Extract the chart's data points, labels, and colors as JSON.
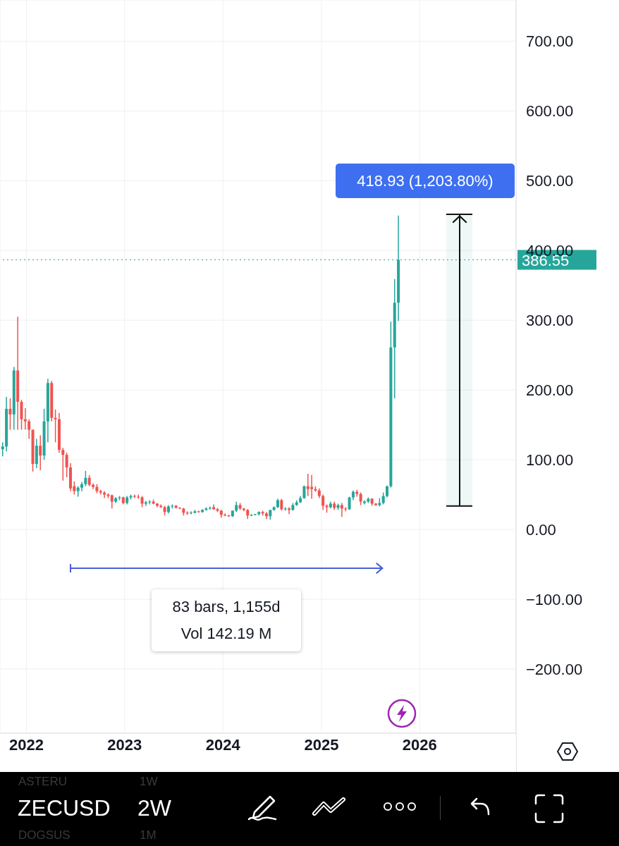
{
  "chart_data": {
    "type": "candlestick",
    "x": [
      "2021-10-04",
      "2021-10-18",
      "2021-11-01",
      "2021-11-15",
      "2021-11-29",
      "2021-12-13",
      "2021-12-27",
      "2022-01-10",
      "2022-01-24",
      "2022-02-07",
      "2022-02-21",
      "2022-03-07",
      "2022-03-21",
      "2022-04-04",
      "2022-04-18",
      "2022-05-02",
      "2022-05-16",
      "2022-05-30",
      "2022-06-13",
      "2022-06-27",
      "2022-07-11",
      "2022-07-25",
      "2022-08-08",
      "2022-08-22",
      "2022-09-05",
      "2022-09-19",
      "2022-10-03",
      "2022-10-17",
      "2022-10-31",
      "2022-11-14",
      "2022-11-28",
      "2022-12-12",
      "2022-12-26",
      "2023-01-09",
      "2023-01-23",
      "2023-02-06",
      "2023-02-20",
      "2023-03-06",
      "2023-03-20",
      "2023-04-03",
      "2023-04-17",
      "2023-05-01",
      "2023-05-15",
      "2023-05-29",
      "2023-06-12",
      "2023-06-26",
      "2023-07-10",
      "2023-07-24",
      "2023-08-07",
      "2023-08-21",
      "2023-09-04",
      "2023-09-18",
      "2023-10-02",
      "2023-10-16",
      "2023-10-30",
      "2023-11-13",
      "2023-11-27",
      "2023-12-11",
      "2023-12-25",
      "2024-01-08",
      "2024-01-22",
      "2024-02-05",
      "2024-02-19",
      "2024-03-04",
      "2024-03-18",
      "2024-04-01",
      "2024-04-15",
      "2024-04-29",
      "2024-05-13",
      "2024-05-27",
      "2024-06-10",
      "2024-06-24",
      "2024-07-08",
      "2024-07-22",
      "2024-08-05",
      "2024-08-19",
      "2024-09-02",
      "2024-09-16",
      "2024-09-30",
      "2024-10-14",
      "2024-10-28",
      "2024-11-11",
      "2024-11-25",
      "2024-12-09",
      "2024-12-23",
      "2025-01-06",
      "2025-01-20",
      "2025-02-03",
      "2025-02-17",
      "2025-03-03",
      "2025-03-17",
      "2025-03-31",
      "2025-04-14",
      "2025-04-28",
      "2025-05-12",
      "2025-05-26",
      "2025-06-09",
      "2025-06-23",
      "2025-07-07",
      "2025-07-21",
      "2025-08-04",
      "2025-08-18",
      "2025-09-01",
      "2025-09-15",
      "2025-09-29",
      "2025-10-13"
    ],
    "ohlc": [
      [
        115,
        125,
        105,
        119
      ],
      [
        119,
        190,
        112,
        173
      ],
      [
        173,
        188,
        143,
        165
      ],
      [
        165,
        233,
        143,
        228
      ],
      [
        228,
        305,
        143,
        183
      ],
      [
        183,
        186,
        143,
        158
      ],
      [
        158,
        174,
        143,
        155
      ],
      [
        155,
        158,
        130,
        143
      ],
      [
        143,
        143,
        83,
        94
      ],
      [
        94,
        130,
        88,
        120
      ],
      [
        120,
        135,
        85,
        106
      ],
      [
        106,
        173,
        100,
        155
      ],
      [
        155,
        216,
        125,
        210
      ],
      [
        210,
        213,
        155,
        160
      ],
      [
        160,
        172,
        125,
        158
      ],
      [
        158,
        167,
        110,
        114
      ],
      [
        114,
        117,
        70,
        107
      ],
      [
        107,
        110,
        75,
        89
      ],
      [
        89,
        95,
        55,
        59
      ],
      [
        62,
        69,
        50,
        55
      ],
      [
        55,
        62,
        47,
        60
      ],
      [
        60,
        68,
        55,
        65
      ],
      [
        65,
        84,
        62,
        74
      ],
      [
        74,
        78,
        62,
        64
      ],
      [
        64,
        66,
        58,
        61
      ],
      [
        61,
        65,
        52,
        55
      ],
      [
        55,
        57,
        50,
        53
      ],
      [
        53,
        55,
        45,
        50
      ],
      [
        50,
        52,
        45,
        48
      ],
      [
        49,
        50,
        30,
        40
      ],
      [
        40,
        46,
        38,
        45
      ],
      [
        45,
        48,
        42,
        46
      ],
      [
        46,
        47,
        36,
        38
      ],
      [
        38,
        48,
        36,
        46
      ],
      [
        46,
        50,
        43,
        48
      ],
      [
        48,
        50,
        45,
        47
      ],
      [
        47,
        50,
        44,
        46
      ],
      [
        46,
        48,
        32,
        37
      ],
      [
        37,
        41,
        34,
        39
      ],
      [
        39,
        42,
        36,
        40
      ],
      [
        40,
        43,
        36,
        37
      ],
      [
        37,
        38,
        32,
        34
      ],
      [
        34,
        36,
        31,
        32
      ],
      [
        32,
        34,
        20,
        25
      ],
      [
        25,
        35,
        23,
        33
      ],
      [
        33,
        36,
        30,
        34
      ],
      [
        34,
        35,
        30,
        31
      ],
      [
        31,
        32,
        29,
        30
      ],
      [
        30,
        31,
        20,
        24
      ],
      [
        24,
        26,
        21,
        23
      ],
      [
        23,
        26,
        22,
        24
      ],
      [
        24,
        28,
        23,
        26
      ],
      [
        26,
        27,
        24,
        25
      ],
      [
        25,
        29,
        24,
        28
      ],
      [
        28,
        32,
        27,
        30
      ],
      [
        30,
        33,
        28,
        31
      ],
      [
        32,
        36,
        28,
        29
      ],
      [
        29,
        31,
        25,
        27
      ],
      [
        27,
        28,
        17,
        21
      ],
      [
        21,
        23,
        19,
        20
      ],
      [
        20,
        21,
        18,
        19
      ],
      [
        19,
        27,
        18,
        27
      ],
      [
        27,
        40,
        25,
        35
      ],
      [
        35,
        38,
        28,
        30
      ],
      [
        30,
        31,
        26,
        28
      ],
      [
        28,
        29,
        15,
        20
      ],
      [
        20,
        22,
        19,
        21
      ],
      [
        21,
        22,
        20,
        22
      ],
      [
        22,
        26,
        20,
        25
      ],
      [
        25,
        27,
        20,
        23
      ],
      [
        23,
        25,
        15,
        19
      ],
      [
        19,
        28,
        14,
        28
      ],
      [
        28,
        33,
        27,
        32
      ],
      [
        32,
        44,
        31,
        42
      ],
      [
        42,
        44,
        27,
        29
      ],
      [
        29,
        32,
        27,
        30
      ],
      [
        30,
        32,
        22,
        28
      ],
      [
        28,
        38,
        27,
        35
      ],
      [
        35,
        42,
        34,
        39
      ],
      [
        39,
        48,
        38,
        45
      ],
      [
        45,
        63,
        44,
        62
      ],
      [
        62,
        80,
        48,
        58
      ],
      [
        61,
        78,
        44,
        58
      ],
      [
        58,
        62,
        54,
        56
      ],
      [
        56,
        59,
        45,
        48
      ],
      [
        48,
        50,
        28,
        34
      ],
      [
        34,
        36,
        24,
        32
      ],
      [
        32,
        40,
        30,
        37
      ],
      [
        37,
        40,
        28,
        31
      ],
      [
        31,
        37,
        28,
        35
      ],
      [
        35,
        38,
        18,
        30
      ],
      [
        30,
        32,
        26,
        29
      ],
      [
        29,
        47,
        28,
        46
      ],
      [
        46,
        56,
        42,
        54
      ],
      [
        54,
        57,
        47,
        51
      ],
      [
        51,
        53,
        35,
        40
      ],
      [
        38,
        42,
        36,
        40
      ],
      [
        40,
        46,
        38,
        44
      ],
      [
        44,
        45,
        34,
        37
      ],
      [
        37,
        38,
        34,
        35
      ],
      [
        35,
        45,
        33,
        38
      ],
      [
        38,
        53,
        36,
        48
      ],
      [
        48,
        63,
        46,
        62
      ],
      [
        62,
        298,
        60,
        261
      ],
      [
        261,
        359,
        188,
        325
      ],
      [
        325,
        450,
        299,
        386.55
      ]
    ],
    "colors": [
      "#26a69a",
      "#26a69a",
      "#ef5350",
      "#26a69a",
      "#ef5350",
      "#ef5350",
      "#ef5350",
      "#ef5350",
      "#ef5350",
      "#26a69a",
      "#ef5350",
      "#26a69a",
      "#26a69a",
      "#ef5350",
      "#ef5350",
      "#ef5350",
      "#ef5350",
      "#ef5350",
      "#ef5350",
      "#ef5350",
      "#26a69a",
      "#26a69a",
      "#26a69a",
      "#ef5350",
      "#ef5350",
      "#ef5350",
      "#ef5350",
      "#ef5350",
      "#ef5350",
      "#ef5350",
      "#26a69a",
      "#26a69a",
      "#ef5350",
      "#26a69a",
      "#26a69a",
      "#ef5350",
      "#ef5350",
      "#ef5350",
      "#26a69a",
      "#26a69a",
      "#ef5350",
      "#ef5350",
      "#ef5350",
      "#ef5350",
      "#26a69a",
      "#26a69a",
      "#ef5350",
      "#ef5350",
      "#ef5350",
      "#ef5350",
      "#26a69a",
      "#26a69a",
      "#ef5350",
      "#26a69a",
      "#26a69a",
      "#26a69a",
      "#ef5350",
      "#ef5350",
      "#ef5350",
      "#ef5350",
      "#ef5350",
      "#26a69a",
      "#26a69a",
      "#ef5350",
      "#ef5350",
      "#ef5350",
      "#26a69a",
      "#26a69a",
      "#26a69a",
      "#ef5350",
      "#ef5350",
      "#26a69a",
      "#26a69a",
      "#26a69a",
      "#ef5350",
      "#26a69a",
      "#ef5350",
      "#26a69a",
      "#26a69a",
      "#26a69a",
      "#26a69a",
      "#ef5350",
      "#ef5350",
      "#ef5350",
      "#ef5350",
      "#ef5350",
      "#ef5350",
      "#26a69a",
      "#ef5350",
      "#26a69a",
      "#ef5350",
      "#ef5350",
      "#26a69a",
      "#26a69a",
      "#ef5350",
      "#ef5350",
      "#26a69a",
      "#26a69a",
      "#ef5350",
      "#ef5350",
      "#26a69a",
      "#26a69a",
      "#26a69a",
      "#26a69a",
      "#26a69a",
      "#26a69a"
    ],
    "xlim": [
      "2021-09-25",
      "2026-12-25"
    ],
    "xticks": [
      {
        "value": "2022-01-01",
        "label": "2022"
      },
      {
        "value": "2023-01-01",
        "label": "2023"
      },
      {
        "value": "2024-01-01",
        "label": "2024"
      },
      {
        "value": "2025-01-01",
        "label": "2025"
      },
      {
        "value": "2026-01-01",
        "label": "2026"
      }
    ],
    "ylim": [
      -292,
      759
    ],
    "yticks": [
      {
        "value": -200,
        "label": "−200.00"
      },
      {
        "value": -100,
        "label": "−100.00"
      },
      {
        "value": 0,
        "label": "0.00"
      },
      {
        "value": 100,
        "label": "100.00"
      },
      {
        "value": 200,
        "label": "200.00"
      },
      {
        "value": 300,
        "label": "300.00"
      },
      {
        "value": 400,
        "label": "400.00"
      },
      {
        "value": 500,
        "label": "500.00"
      },
      {
        "value": 600,
        "label": "600.00"
      },
      {
        "value": 700,
        "label": "700.00"
      }
    ],
    "grid": true,
    "ref_lines": [
      {
        "axis": "y",
        "value": 386.55,
        "label": "386.55",
        "color": "#26a69a",
        "line_style": "dotted"
      }
    ],
    "annotations": [
      "418.93 (1,203.80%)",
      "83 bars, 1,155d",
      "Vol 142.19 M",
      "ZECUSD",
      "2W",
      "ASTERU",
      "1W",
      "DOGSUS",
      "1M"
    ]
  }
}
